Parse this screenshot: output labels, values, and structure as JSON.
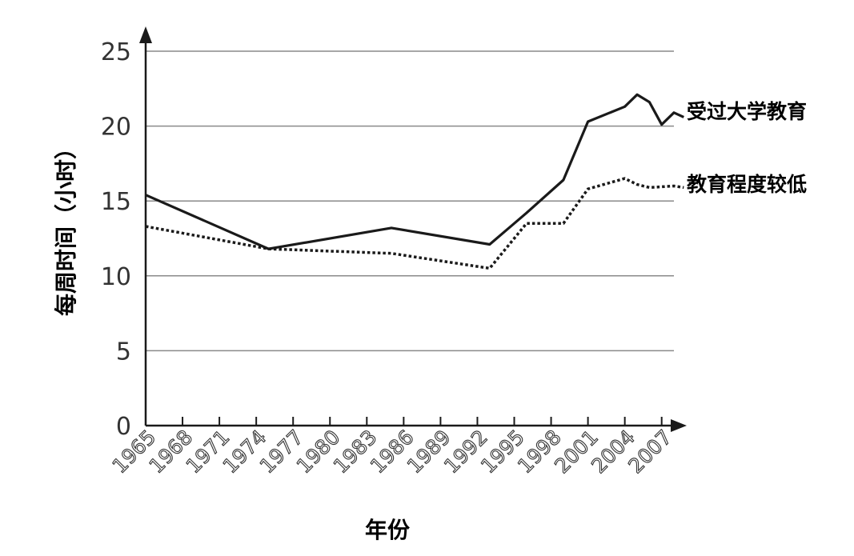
{
  "chart_data": {
    "type": "line",
    "xlabel": "年份",
    "ylabel": "每周时间（小时）",
    "ylim": [
      0,
      25
    ],
    "yticks": [
      0,
      5,
      10,
      15,
      20,
      25
    ],
    "xlim": [
      1965,
      2007
    ],
    "xticks": [
      1965,
      1968,
      1971,
      1974,
      1977,
      1980,
      1983,
      1986,
      1989,
      1992,
      1995,
      1998,
      2001,
      2004,
      2007
    ],
    "grid": true,
    "legend": "inline labels at right end of each line",
    "series": [
      {
        "name": "受过大学教育",
        "style": "solid",
        "color": "#1a1a1a",
        "points": [
          [
            1965,
            15.4
          ],
          [
            1975,
            11.8
          ],
          [
            1985,
            13.2
          ],
          [
            1993,
            12.1
          ],
          [
            1996,
            14.2
          ],
          [
            1999,
            16.4
          ],
          [
            2001,
            20.3
          ],
          [
            2004,
            21.3
          ],
          [
            2005,
            22.1
          ],
          [
            2006,
            21.6
          ],
          [
            2007,
            20.1
          ],
          [
            2008,
            20.9
          ],
          [
            2008.8,
            20.6
          ]
        ]
      },
      {
        "name": "教育程度较低",
        "style": "dotted",
        "color": "#1a1a1a",
        "points": [
          [
            1965,
            13.3
          ],
          [
            1975,
            11.8
          ],
          [
            1985,
            11.5
          ],
          [
            1993,
            10.5
          ],
          [
            1996,
            13.5
          ],
          [
            1999,
            13.5
          ],
          [
            2001,
            15.8
          ],
          [
            2004,
            16.5
          ],
          [
            2005,
            16.1
          ],
          [
            2006,
            15.9
          ],
          [
            2008,
            16.0
          ],
          [
            2008.8,
            15.9
          ]
        ]
      }
    ]
  }
}
